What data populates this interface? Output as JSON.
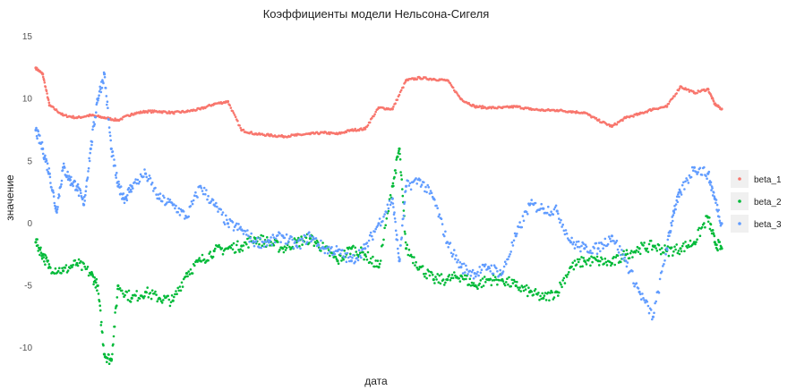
{
  "chart_data": {
    "type": "scatter",
    "title": "Коэффициенты модели Нельсона-Сигеля",
    "xlabel": "дата",
    "ylabel": "значение",
    "ylim": [
      -11.5,
      15.8
    ],
    "xlim": [
      0,
      1
    ],
    "yticks": [
      15,
      10,
      5,
      0,
      -5,
      -10
    ],
    "x_ticks_shown": false,
    "grid": false,
    "legend_position": "right",
    "series": [
      {
        "name": "beta_1",
        "color": "#f8766d",
        "x": [
          0.0,
          0.01,
          0.02,
          0.04,
          0.06,
          0.08,
          0.1,
          0.12,
          0.14,
          0.16,
          0.18,
          0.2,
          0.22,
          0.24,
          0.26,
          0.28,
          0.3,
          0.32,
          0.34,
          0.36,
          0.38,
          0.4,
          0.42,
          0.44,
          0.46,
          0.48,
          0.5,
          0.52,
          0.54,
          0.56,
          0.58,
          0.6,
          0.62,
          0.64,
          0.66,
          0.68,
          0.7,
          0.72,
          0.74,
          0.76,
          0.78,
          0.8,
          0.82,
          0.84,
          0.86,
          0.88,
          0.9,
          0.92,
          0.94,
          0.96,
          0.98,
          0.99,
          1.0
        ],
        "values": [
          12.5,
          12.0,
          9.5,
          8.7,
          8.5,
          8.7,
          8.5,
          8.3,
          8.8,
          9.0,
          9.0,
          8.9,
          9.0,
          9.2,
          9.6,
          9.8,
          7.5,
          7.2,
          7.1,
          7.0,
          7.1,
          7.2,
          7.3,
          7.2,
          7.5,
          7.6,
          9.3,
          9.2,
          11.5,
          11.7,
          11.6,
          11.5,
          10.0,
          9.4,
          9.3,
          9.3,
          9.4,
          9.2,
          9.1,
          9.1,
          9.0,
          8.9,
          8.3,
          7.8,
          8.5,
          8.8,
          9.2,
          9.4,
          11.0,
          10.5,
          10.8,
          9.6,
          9.2
        ]
      },
      {
        "name": "beta_2",
        "color": "#00ba38",
        "x": [
          0.0,
          0.01,
          0.02,
          0.04,
          0.06,
          0.08,
          0.09,
          0.1,
          0.11,
          0.12,
          0.14,
          0.16,
          0.18,
          0.2,
          0.22,
          0.24,
          0.26,
          0.28,
          0.3,
          0.32,
          0.34,
          0.36,
          0.38,
          0.4,
          0.42,
          0.44,
          0.46,
          0.48,
          0.5,
          0.52,
          0.53,
          0.54,
          0.56,
          0.58,
          0.6,
          0.62,
          0.64,
          0.66,
          0.68,
          0.7,
          0.72,
          0.74,
          0.76,
          0.78,
          0.8,
          0.82,
          0.84,
          0.86,
          0.88,
          0.9,
          0.92,
          0.94,
          0.96,
          0.98,
          0.99,
          1.0
        ],
        "values": [
          -1.5,
          -2.5,
          -3.5,
          -3.8,
          -3.2,
          -4.0,
          -5.0,
          -10.5,
          -11.0,
          -5.0,
          -6.0,
          -5.5,
          -6.0,
          -6.2,
          -4.0,
          -3.0,
          -2.2,
          -2.0,
          -1.8,
          -1.2,
          -1.5,
          -2.0,
          -1.5,
          -1.2,
          -2.0,
          -3.0,
          -2.0,
          -2.5,
          -3.5,
          3.0,
          6.0,
          -2.0,
          -3.5,
          -4.5,
          -4.5,
          -4.2,
          -5.0,
          -4.5,
          -4.5,
          -5.0,
          -5.5,
          -6.0,
          -5.5,
          -3.5,
          -3.0,
          -3.0,
          -3.2,
          -2.5,
          -2.0,
          -1.8,
          -2.2,
          -2.0,
          -1.5,
          0.5,
          -1.5,
          -2.0
        ]
      },
      {
        "name": "beta_3",
        "color": "#619cff",
        "x": [
          0.0,
          0.01,
          0.02,
          0.03,
          0.04,
          0.05,
          0.06,
          0.07,
          0.08,
          0.09,
          0.1,
          0.11,
          0.12,
          0.13,
          0.14,
          0.16,
          0.18,
          0.2,
          0.22,
          0.24,
          0.26,
          0.28,
          0.3,
          0.32,
          0.34,
          0.36,
          0.38,
          0.4,
          0.42,
          0.44,
          0.46,
          0.48,
          0.5,
          0.52,
          0.53,
          0.54,
          0.56,
          0.58,
          0.6,
          0.62,
          0.64,
          0.66,
          0.68,
          0.7,
          0.72,
          0.74,
          0.76,
          0.78,
          0.8,
          0.82,
          0.84,
          0.86,
          0.88,
          0.9,
          0.92,
          0.93,
          0.94,
          0.96,
          0.98,
          0.99,
          1.0
        ],
        "values": [
          7.5,
          6.0,
          4.0,
          1.0,
          4.5,
          3.5,
          3.0,
          1.5,
          6.0,
          10.0,
          12.0,
          6.0,
          3.0,
          2.0,
          3.0,
          4.0,
          2.0,
          1.5,
          0.5,
          3.0,
          1.5,
          0.0,
          -0.5,
          -1.5,
          -1.5,
          -1.0,
          -1.8,
          -1.0,
          -2.0,
          -2.2,
          -3.0,
          -2.0,
          0.0,
          2.0,
          -3.0,
          3.0,
          3.5,
          2.0,
          -1.5,
          -3.5,
          -4.0,
          -3.5,
          -4.0,
          -1.0,
          1.5,
          1.2,
          1.0,
          -1.5,
          -2.0,
          -2.0,
          -1.0,
          -3.0,
          -5.5,
          -7.5,
          -2.0,
          1.0,
          2.5,
          4.5,
          4.0,
          2.0,
          0.0
        ]
      }
    ]
  }
}
